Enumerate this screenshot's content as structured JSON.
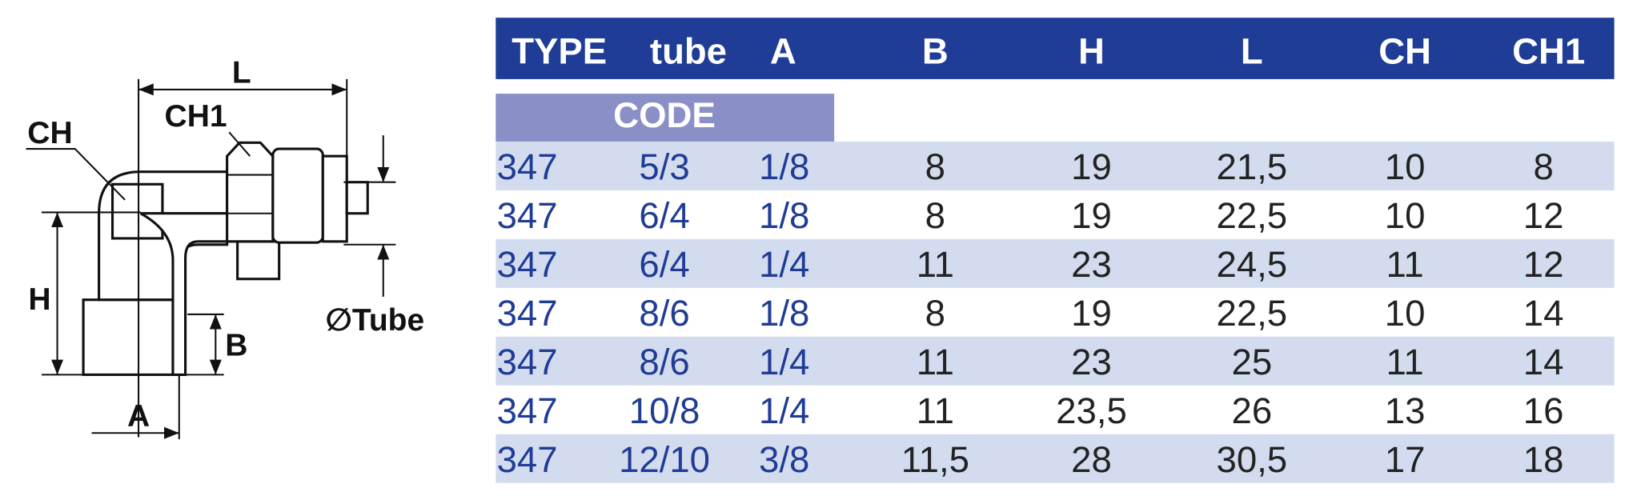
{
  "drawing": {
    "labels": {
      "L": "L",
      "CH1": "CH1",
      "CH": "CH",
      "H": "H",
      "B": "B",
      "A": "A",
      "tube": "∅Tube"
    }
  },
  "table": {
    "header": [
      "TYPE",
      "tube",
      "A",
      "B",
      "H",
      "L",
      "CH",
      "CH1"
    ],
    "code_label": "CODE",
    "rows": [
      [
        "347",
        "5/3",
        "1/8",
        "8",
        "19",
        "21,5",
        "10",
        "8"
      ],
      [
        "347",
        "6/4",
        "1/8",
        "8",
        "19",
        "22,5",
        "10",
        "12"
      ],
      [
        "347",
        "6/4",
        "1/4",
        "11",
        "23",
        "24,5",
        "11",
        "12"
      ],
      [
        "347",
        "8/6",
        "1/8",
        "8",
        "19",
        "22,5",
        "10",
        "14"
      ],
      [
        "347",
        "8/6",
        "1/4",
        "11",
        "23",
        "25",
        "11",
        "14"
      ],
      [
        "347",
        "10/8",
        "1/4",
        "11",
        "23,5",
        "26",
        "13",
        "16"
      ],
      [
        "347",
        "12/10",
        "3/8",
        "11,5",
        "28",
        "30,5",
        "17",
        "18"
      ]
    ]
  }
}
